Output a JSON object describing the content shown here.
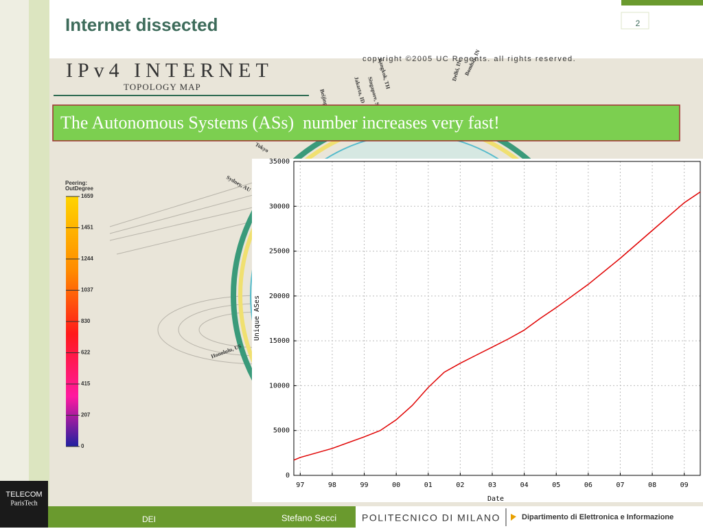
{
  "header": {
    "title": "Internet dissected",
    "page_number": "2"
  },
  "map": {
    "title": "IPv4 INTERNET",
    "subtitle": "TOPOLOGY MAP",
    "copyright": "copyright ©2005 UC Regents. all rights reserved.",
    "cities": [
      "Beijing",
      "Jakarta, ID",
      "Singapore, SG",
      "Bangkok, TH",
      "Delhi, IN",
      "Bombay, IN",
      "Tokyo",
      "Sydney, AU",
      "Honolulu, US"
    ],
    "legend": {
      "title": "Peering:",
      "subtitle": "OutDegree",
      "values": [
        1659,
        1451,
        1244,
        1037,
        830,
        622,
        415,
        207,
        0
      ]
    }
  },
  "banner": "The Autonomous Systems (ASs)  number increases very fast!",
  "chart": {
    "type": "line",
    "x_label": "Date",
    "y_label": "Unique ASes",
    "color": "#e00000",
    "grid": true,
    "x": [
      1996.8,
      1997.0,
      1998.0,
      1999.0,
      1999.5,
      2000.0,
      2000.5,
      2001.0,
      2001.5,
      2002.0,
      2002.5,
      2003.0,
      2003.5,
      2004.0,
      2004.5,
      2005.0,
      2006.0,
      2007.0,
      2008.0,
      2009.0,
      2009.5
    ],
    "values": [
      1700,
      2000,
      3000,
      4300,
      5000,
      6200,
      7800,
      9800,
      11500,
      12500,
      13400,
      14300,
      15200,
      16200,
      17500,
      18700,
      21300,
      24200,
      27300,
      30400,
      31600
    ],
    "xlim": [
      1996.8,
      2009.5
    ],
    "ylim": [
      0,
      35000
    ],
    "xticks": [
      {
        "value": 1997,
        "label": "97"
      },
      {
        "value": 1998,
        "label": "98"
      },
      {
        "value": 1999,
        "label": "99"
      },
      {
        "value": 2000,
        "label": "00"
      },
      {
        "value": 2001,
        "label": "01"
      },
      {
        "value": 2002,
        "label": "02"
      },
      {
        "value": 2003,
        "label": "03"
      },
      {
        "value": 2004,
        "label": "04"
      },
      {
        "value": 2005,
        "label": "05"
      },
      {
        "value": 2006,
        "label": "06"
      },
      {
        "value": 2007,
        "label": "07"
      },
      {
        "value": 2008,
        "label": "08"
      },
      {
        "value": 2009,
        "label": "09"
      }
    ],
    "yticks": [
      0,
      5000,
      10000,
      15000,
      20000,
      25000,
      30000,
      35000
    ]
  },
  "footer": {
    "left": "DEI",
    "author": "Stefano Secci",
    "school": "POLITECNICO DI MILANO",
    "department": "Dipartimento di Elettronica e Informazione",
    "logo_top": "TELECOM",
    "logo_bottom": "ParisTech"
  }
}
